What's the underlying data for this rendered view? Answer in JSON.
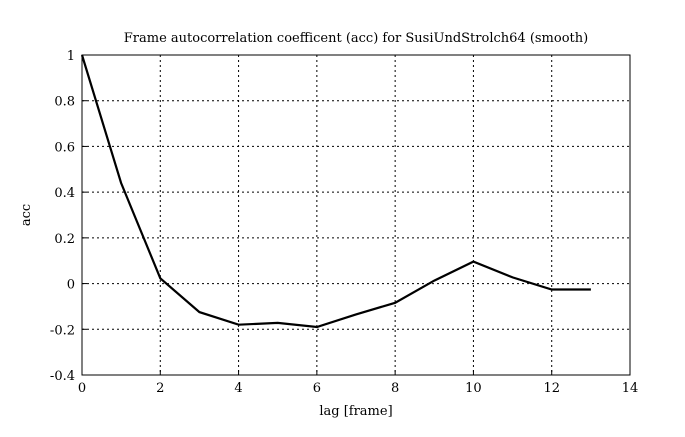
{
  "chart_data": {
    "type": "line",
    "title": "Frame autocorrelation coefficent (acc) for SusiUndStrolch64 (smooth)",
    "xlabel": "lag [frame]",
    "ylabel": "acc",
    "xlim": [
      0,
      14
    ],
    "ylim": [
      -0.4,
      1
    ],
    "xticks": [
      0,
      2,
      4,
      6,
      8,
      10,
      12,
      14
    ],
    "yticks": [
      -0.4,
      -0.2,
      0,
      0.2,
      0.4,
      0.6,
      0.8,
      1
    ],
    "grid": true,
    "line_color": "#000000",
    "x": [
      0,
      1,
      2,
      3,
      4,
      5,
      6,
      7,
      8,
      9,
      10,
      11,
      12,
      13
    ],
    "y": [
      1.0,
      0.44,
      0.023,
      -0.125,
      -0.18,
      -0.172,
      -0.19,
      -0.135,
      -0.084,
      0.013,
      0.096,
      0.027,
      -0.026,
      -0.026
    ]
  }
}
